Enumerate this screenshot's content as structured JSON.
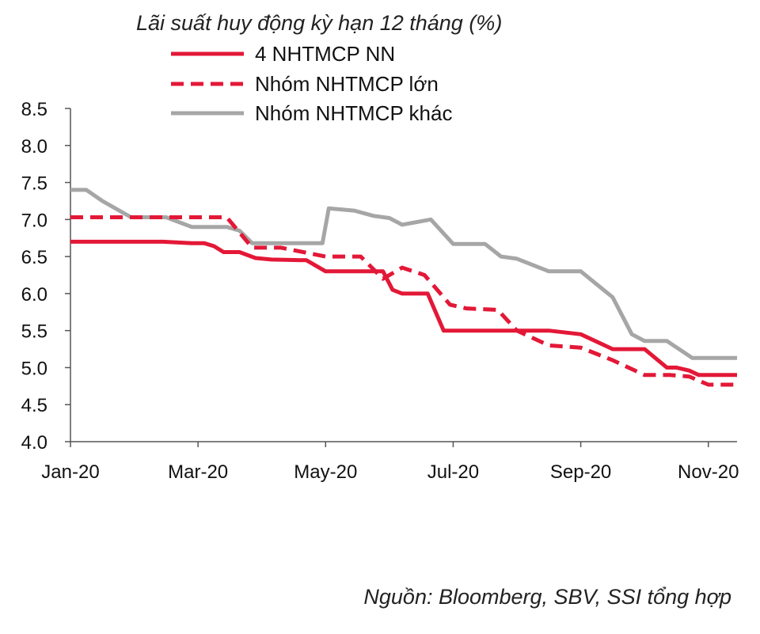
{
  "chart_data": {
    "type": "line",
    "title": "Lãi suất huy động kỳ hạn 12 tháng (%)",
    "xlabel": "",
    "ylabel": "",
    "x_tick_labels": [
      "Jan-20",
      "Mar-20",
      "May-20",
      "Jul-20",
      "Sep-20",
      "Nov-20"
    ],
    "x_tick_pos": [
      0,
      2,
      4,
      6,
      8,
      10
    ],
    "xlim": [
      0,
      10.45
    ],
    "ylim": [
      4.0,
      8.5
    ],
    "y_ticks": [
      "4.0",
      "4.5",
      "5.0",
      "5.5",
      "6.0",
      "6.5",
      "7.0",
      "7.5",
      "8.0",
      "8.5"
    ],
    "grid": false,
    "legend_position": "top",
    "series": [
      {
        "name": "4 NHTMCP NN",
        "color": "#e31837",
        "dash": "solid",
        "x": [
          0,
          1.45,
          1.9,
          2.1,
          2.25,
          2.4,
          2.65,
          2.9,
          3.15,
          3.7,
          4.0,
          4.5,
          4.75,
          4.9,
          5.05,
          5.2,
          5.6,
          5.85,
          6.0,
          6.5,
          7.5,
          8.0,
          8.5,
          9.0,
          9.35,
          9.5,
          9.7,
          9.85,
          10.0,
          10.45
        ],
        "y": [
          6.7,
          6.7,
          6.68,
          6.68,
          6.64,
          6.56,
          6.56,
          6.48,
          6.46,
          6.45,
          6.3,
          6.3,
          6.3,
          6.3,
          6.05,
          6.0,
          6.0,
          5.5,
          5.5,
          5.5,
          5.5,
          5.45,
          5.25,
          5.25,
          5.0,
          5.0,
          4.96,
          4.9,
          4.9,
          4.9
        ]
      },
      {
        "name": "Nhóm NHTMCP lớn",
        "color": "#e31837",
        "dash": "dashed",
        "x": [
          0,
          2.45,
          2.85,
          3.3,
          4.0,
          4.55,
          4.9,
          5.2,
          5.55,
          5.95,
          6.2,
          6.7,
          7.0,
          7.5,
          8.0,
          8.5,
          9.0,
          9.4,
          9.7,
          10.0,
          10.45
        ],
        "y": [
          7.03,
          7.03,
          6.62,
          6.62,
          6.5,
          6.5,
          6.2,
          6.35,
          6.25,
          5.85,
          5.8,
          5.78,
          5.5,
          5.3,
          5.27,
          5.1,
          4.9,
          4.9,
          4.88,
          4.77,
          4.77
        ]
      },
      {
        "name": "Nhóm NHTMCP khác",
        "color": "#a6a6a6",
        "dash": "solid",
        "x": [
          0,
          0.25,
          0.5,
          0.95,
          1.5,
          1.9,
          2.45,
          2.65,
          2.85,
          3.1,
          3.95,
          4.05,
          4.45,
          4.75,
          5.0,
          5.2,
          5.65,
          6.0,
          6.5,
          6.75,
          7.0,
          7.5,
          8.0,
          8.5,
          8.8,
          9.0,
          9.35,
          9.75,
          10.0,
          10.45
        ],
        "y": [
          7.4,
          7.4,
          7.25,
          7.03,
          7.03,
          6.9,
          6.9,
          6.85,
          6.68,
          6.68,
          6.68,
          7.15,
          7.12,
          7.05,
          7.02,
          6.93,
          7.0,
          6.67,
          6.67,
          6.5,
          6.47,
          6.3,
          6.3,
          5.95,
          5.45,
          5.36,
          5.36,
          5.13,
          5.13,
          5.13
        ]
      }
    ],
    "source_note": "Nguồn:  Bloomberg, SBV, SSI tổng hợp"
  }
}
